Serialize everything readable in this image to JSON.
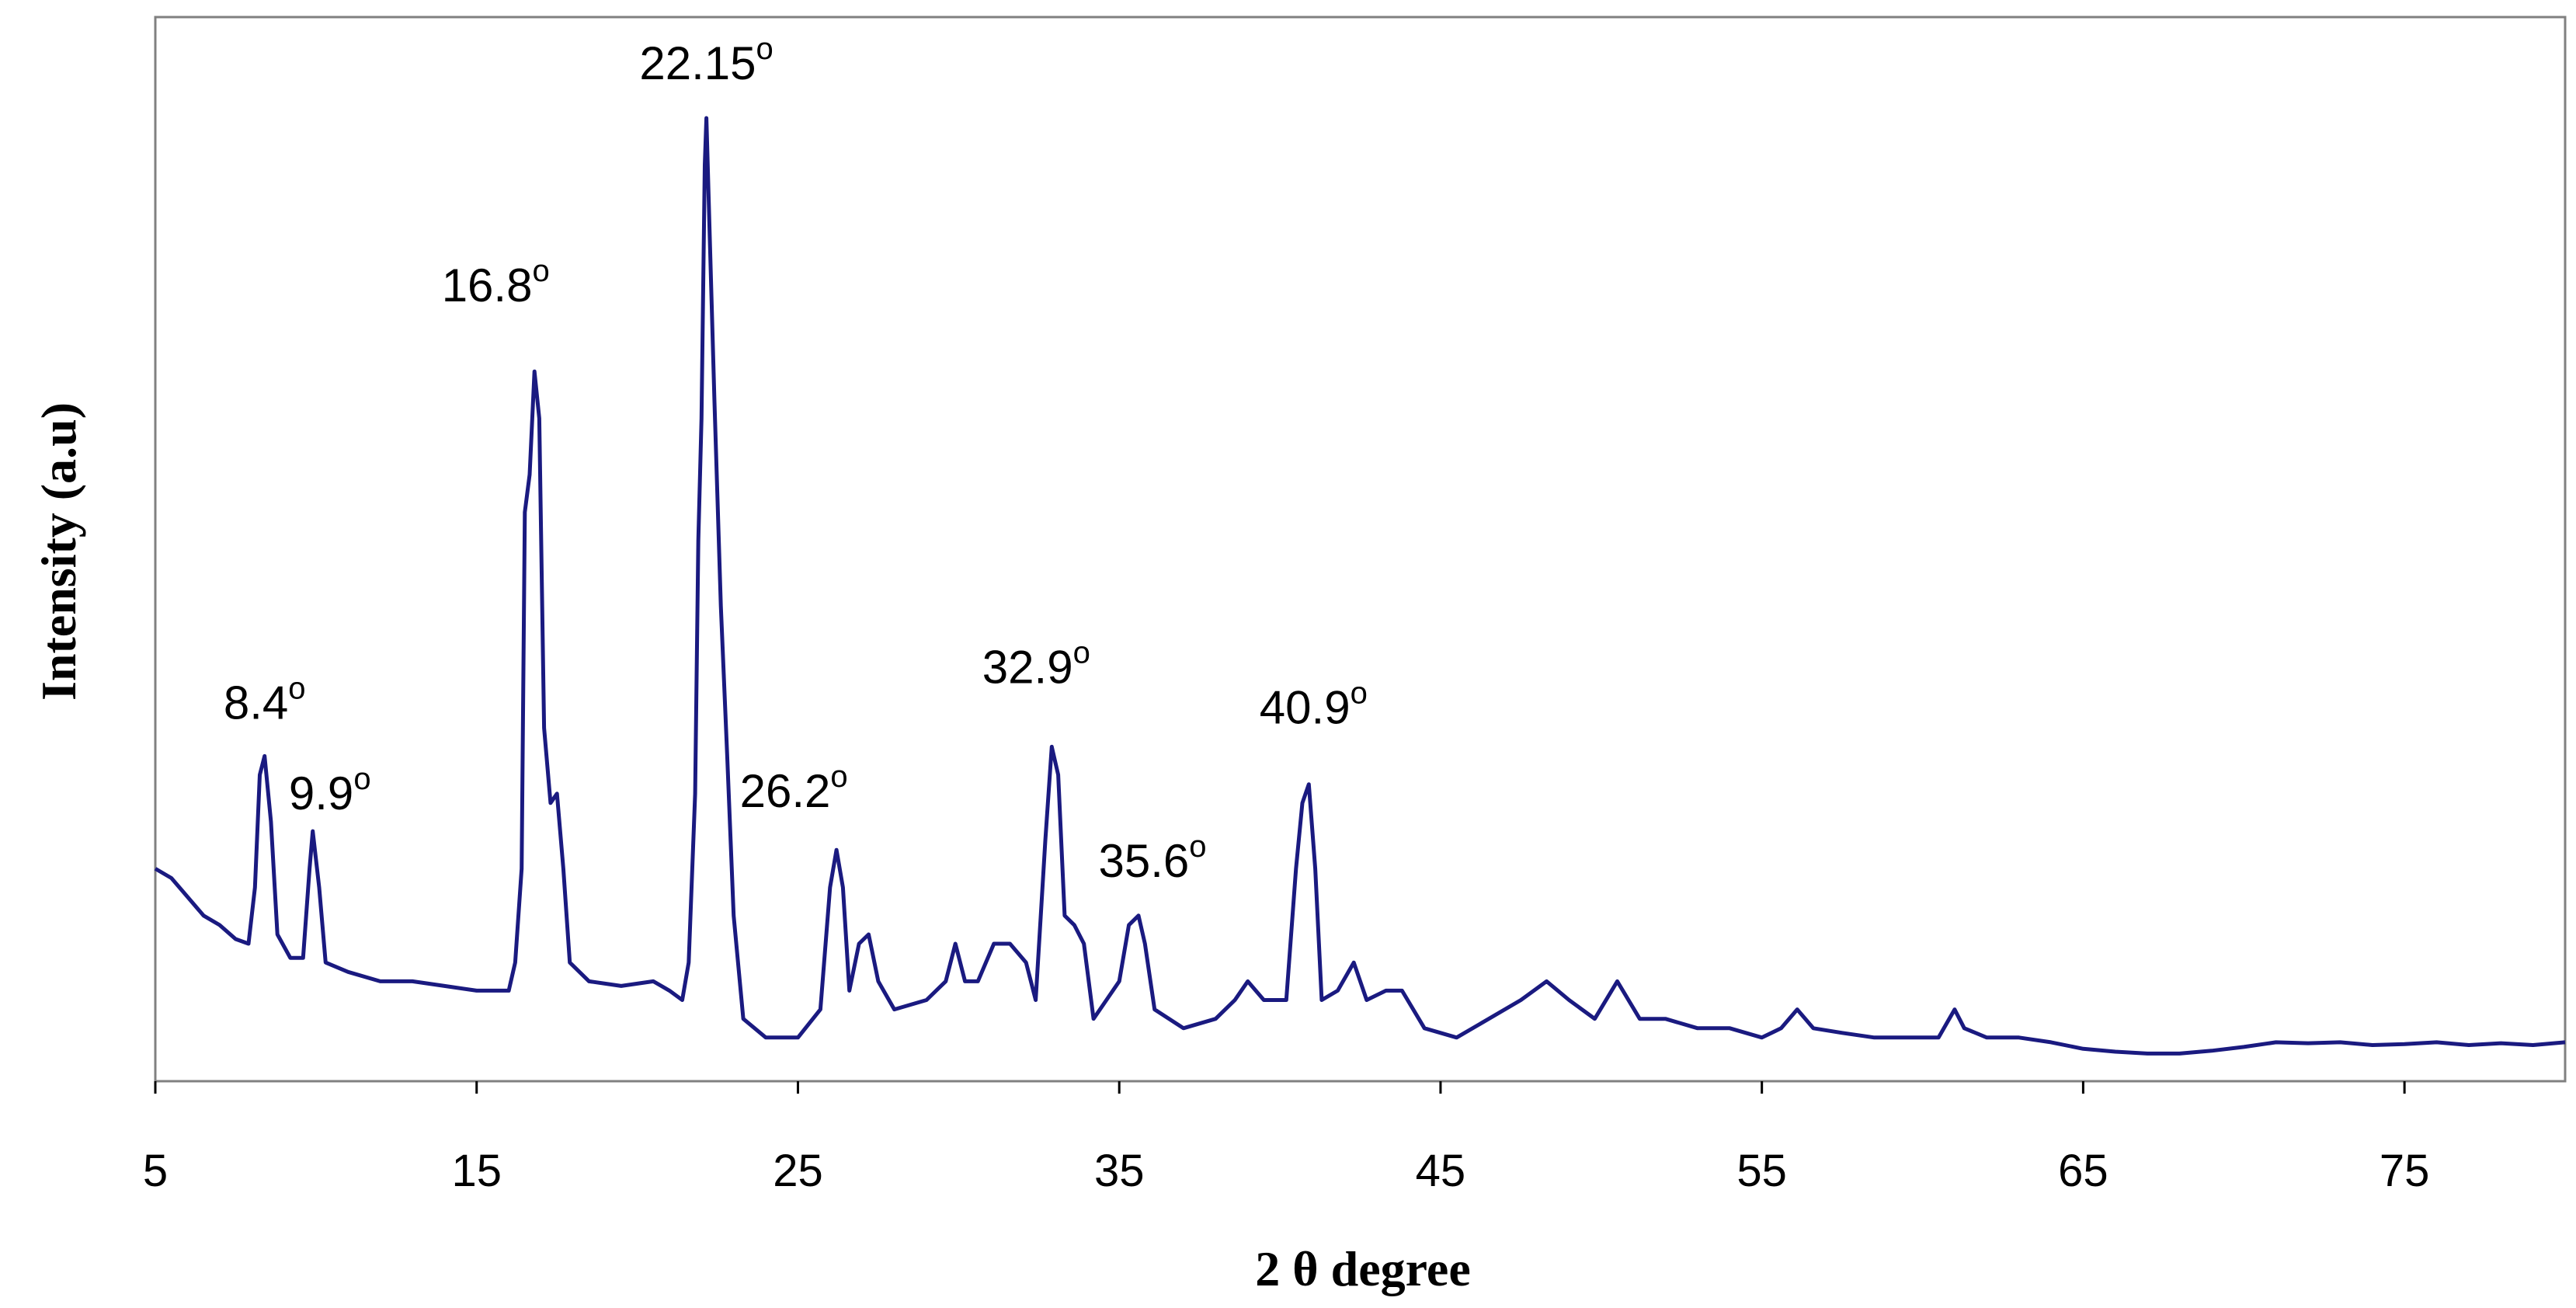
{
  "chart_data": {
    "type": "line",
    "xlabel": "2 θ degree",
    "ylabel": "Intensity (a.u)",
    "xlim": [
      5,
      80
    ],
    "ylim": [
      0,
      100
    ],
    "grid": false,
    "legend": "none",
    "line_color": "#1A1A80",
    "xticks": [
      5,
      15,
      25,
      35,
      45,
      55,
      65,
      75
    ],
    "xtick_labels": [
      "5",
      "15",
      "25",
      "35",
      "45",
      "55",
      "65",
      "75"
    ],
    "annotations": [
      {
        "text": "8.4",
        "sup": "o",
        "x": 8.4,
        "y": 32
      },
      {
        "text": "9.9",
        "sup": "o",
        "x": 9.9,
        "y": 24
      },
      {
        "text": "16.8",
        "sup": "o",
        "x": 16.8,
        "y": 73
      },
      {
        "text": "22.15",
        "sup": "o",
        "x": 22.15,
        "y": 100
      },
      {
        "text": "26.2",
        "sup": "o",
        "x": 26.2,
        "y": 22
      },
      {
        "text": "32.9",
        "sup": "o",
        "x": 32.9,
        "y": 33
      },
      {
        "text": "35.6",
        "sup": "o",
        "x": 35.6,
        "y": 15
      },
      {
        "text": "40.9",
        "sup": "o",
        "x": 40.9,
        "y": 29
      }
    ],
    "series": [
      {
        "values": [
          [
            5.0,
            20
          ],
          [
            5.5,
            19
          ],
          [
            6.0,
            17
          ],
          [
            6.5,
            15
          ],
          [
            7.0,
            14
          ],
          [
            7.5,
            12.5
          ],
          [
            7.9,
            12
          ],
          [
            8.1,
            18
          ],
          [
            8.25,
            30
          ],
          [
            8.4,
            32
          ],
          [
            8.6,
            25
          ],
          [
            8.8,
            13
          ],
          [
            9.2,
            10.5
          ],
          [
            9.6,
            10.5
          ],
          [
            9.8,
            20
          ],
          [
            9.9,
            24
          ],
          [
            10.1,
            18
          ],
          [
            10.3,
            10
          ],
          [
            11,
            9
          ],
          [
            12,
            8
          ],
          [
            13,
            8
          ],
          [
            14,
            7.5
          ],
          [
            15,
            7
          ],
          [
            16,
            7
          ],
          [
            16.2,
            10
          ],
          [
            16.4,
            20
          ],
          [
            16.5,
            58
          ],
          [
            16.65,
            62
          ],
          [
            16.8,
            73
          ],
          [
            16.95,
            68
          ],
          [
            17.1,
            35
          ],
          [
            17.3,
            27
          ],
          [
            17.5,
            28
          ],
          [
            17.7,
            20
          ],
          [
            17.9,
            10
          ],
          [
            18.5,
            8
          ],
          [
            19.5,
            7.5
          ],
          [
            20.5,
            8
          ],
          [
            21,
            7
          ],
          [
            21.4,
            6
          ],
          [
            21.6,
            10
          ],
          [
            21.8,
            28
          ],
          [
            21.9,
            55
          ],
          [
            22.0,
            68
          ],
          [
            22.1,
            95
          ],
          [
            22.15,
            100
          ],
          [
            22.25,
            88
          ],
          [
            22.4,
            70
          ],
          [
            22.6,
            48
          ],
          [
            22.8,
            32
          ],
          [
            23.0,
            15
          ],
          [
            23.3,
            4
          ],
          [
            24,
            2
          ],
          [
            25,
            2
          ],
          [
            25.7,
            5
          ],
          [
            26.0,
            18
          ],
          [
            26.2,
            22
          ],
          [
            26.4,
            18
          ],
          [
            26.6,
            7
          ],
          [
            26.9,
            12
          ],
          [
            27.2,
            13
          ],
          [
            27.5,
            8
          ],
          [
            28,
            5
          ],
          [
            29,
            6
          ],
          [
            29.6,
            8
          ],
          [
            29.9,
            12
          ],
          [
            30.2,
            8
          ],
          [
            30.6,
            8
          ],
          [
            31.1,
            12
          ],
          [
            31.6,
            12
          ],
          [
            32.1,
            10
          ],
          [
            32.4,
            6
          ],
          [
            32.7,
            23
          ],
          [
            32.9,
            33
          ],
          [
            33.1,
            30
          ],
          [
            33.3,
            15
          ],
          [
            33.6,
            14
          ],
          [
            33.9,
            12
          ],
          [
            34.2,
            4
          ],
          [
            34.6,
            6
          ],
          [
            35.0,
            8
          ],
          [
            35.3,
            14
          ],
          [
            35.6,
            15
          ],
          [
            35.8,
            12
          ],
          [
            36.1,
            5
          ],
          [
            37,
            3
          ],
          [
            38,
            4
          ],
          [
            38.6,
            6
          ],
          [
            39.0,
            8
          ],
          [
            39.5,
            6
          ],
          [
            40.2,
            6
          ],
          [
            40.5,
            20
          ],
          [
            40.7,
            27
          ],
          [
            40.9,
            29
          ],
          [
            41.1,
            20
          ],
          [
            41.3,
            6
          ],
          [
            41.8,
            7
          ],
          [
            42.3,
            10
          ],
          [
            42.7,
            6
          ],
          [
            43.3,
            7
          ],
          [
            43.8,
            7
          ],
          [
            44.5,
            3
          ],
          [
            45.5,
            2
          ],
          [
            46.5,
            4
          ],
          [
            47.5,
            6
          ],
          [
            48.3,
            8
          ],
          [
            49.0,
            6
          ],
          [
            49.8,
            4
          ],
          [
            50.5,
            8
          ],
          [
            51.2,
            4
          ],
          [
            52,
            4
          ],
          [
            53,
            3
          ],
          [
            54,
            3
          ],
          [
            55,
            2
          ],
          [
            55.6,
            3
          ],
          [
            56.1,
            5
          ],
          [
            56.6,
            3
          ],
          [
            57.5,
            2.5
          ],
          [
            58.5,
            2
          ],
          [
            59.5,
            2
          ],
          [
            60.5,
            2
          ],
          [
            61.0,
            5
          ],
          [
            61.3,
            3
          ],
          [
            62,
            2
          ],
          [
            63,
            2
          ],
          [
            64,
            1.5
          ],
          [
            65,
            0.8
          ],
          [
            66,
            0.5
          ],
          [
            67,
            0.3
          ],
          [
            68,
            0.3
          ],
          [
            69,
            0.6
          ],
          [
            70,
            1
          ],
          [
            71,
            1.5
          ],
          [
            72,
            1.4
          ],
          [
            73,
            1.5
          ],
          [
            74,
            1.2
          ],
          [
            75,
            1.3
          ],
          [
            76,
            1.5
          ],
          [
            77,
            1.2
          ],
          [
            78,
            1.4
          ],
          [
            79,
            1.2
          ],
          [
            80,
            1.5
          ]
        ]
      }
    ]
  }
}
